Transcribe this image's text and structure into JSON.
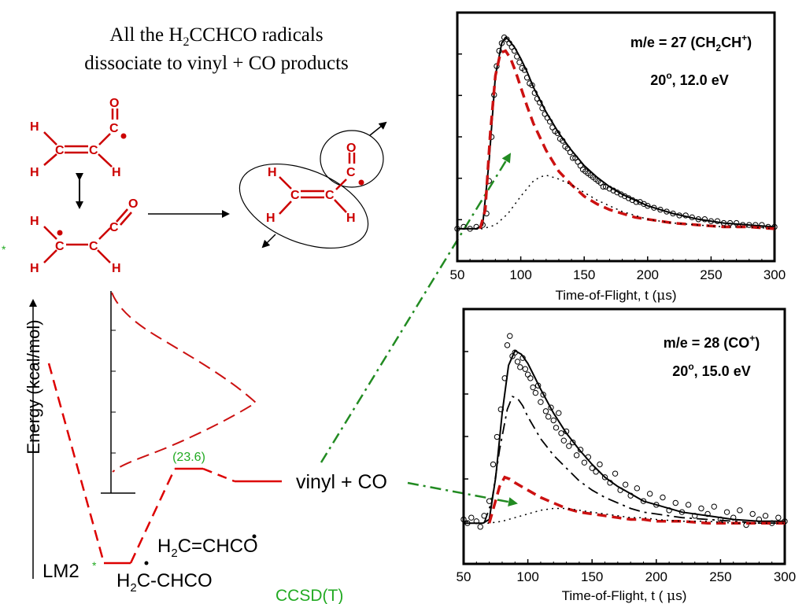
{
  "title": {
    "line1_pre": "All the H",
    "line1_sub": "2",
    "line1_post": "CCHCO radicals",
    "line2": "dissociate to vinyl + CO products"
  },
  "structures": {
    "atoms": {
      "H": "H",
      "C": "C",
      "O": "O"
    }
  },
  "energy_diagram": {
    "ylabel": "Energy (kcal/mol)",
    "barrier_label": "(23.6)",
    "product_label": "vinyl + CO",
    "minimum_label": "LM2",
    "star": "*",
    "species1": {
      "pre": "H",
      "sub": "2",
      "post": "C=CHCO"
    },
    "species2": {
      "pre": "H",
      "sub": "2",
      "post": "C-CHCO"
    },
    "method": "CCSD(T)",
    "colors": {
      "pathway": "#dd0000",
      "method": "#22aa22"
    }
  },
  "chart_data": [
    {
      "type": "line",
      "label": {
        "pre": "m/e = 27 (CH",
        "sub": "2",
        "mid": "CH",
        "sup": "+",
        "post": ")"
      },
      "condition": {
        "pre": "20",
        "sup": "o",
        "post": ", 12.0 eV"
      },
      "xlabel": {
        "pre": "Time-of-Flight, t (",
        "mu": "μ",
        "post": "s)"
      },
      "xlim": [
        50,
        300
      ],
      "ylim": [
        0,
        1
      ],
      "x_ticks": [
        50,
        100,
        150,
        200,
        250,
        300
      ],
      "colors": {
        "data": "#000000",
        "fit": "#000000",
        "red": "#cc1111",
        "dotted": "#000000"
      },
      "series": [
        {
          "style": "circles",
          "x": [
            50,
            55,
            60,
            65,
            70,
            73,
            75,
            77,
            79,
            81,
            83,
            85,
            87,
            89,
            91,
            93,
            95,
            97,
            99,
            101,
            103,
            105,
            107,
            109,
            111,
            113,
            115,
            117,
            119,
            121,
            123,
            125,
            127,
            129,
            131,
            133,
            135,
            137,
            139,
            141,
            143,
            145,
            147,
            149,
            151,
            153,
            155,
            157,
            159,
            161,
            163,
            165,
            167,
            170,
            173,
            176,
            179,
            182,
            185,
            188,
            191,
            194,
            197,
            200,
            205,
            210,
            215,
            220,
            225,
            230,
            235,
            240,
            245,
            250,
            255,
            260,
            265,
            270,
            275,
            280,
            285,
            290,
            295,
            300
          ],
          "y": [
            0.0,
            0.01,
            0.0,
            0.01,
            0.02,
            0.08,
            0.25,
            0.48,
            0.7,
            0.85,
            0.93,
            0.97,
            1.0,
            0.99,
            0.97,
            0.95,
            0.93,
            0.9,
            0.87,
            0.84,
            0.83,
            0.79,
            0.76,
            0.75,
            0.71,
            0.68,
            0.66,
            0.63,
            0.6,
            0.58,
            0.56,
            0.53,
            0.51,
            0.5,
            0.47,
            0.46,
            0.43,
            0.42,
            0.4,
            0.37,
            0.37,
            0.35,
            0.33,
            0.31,
            0.3,
            0.29,
            0.28,
            0.27,
            0.26,
            0.25,
            0.24,
            0.22,
            0.22,
            0.21,
            0.2,
            0.19,
            0.18,
            0.17,
            0.16,
            0.15,
            0.14,
            0.14,
            0.13,
            0.12,
            0.11,
            0.1,
            0.09,
            0.08,
            0.07,
            0.07,
            0.06,
            0.05,
            0.05,
            0.04,
            0.04,
            0.03,
            0.03,
            0.03,
            0.02,
            0.02,
            0.02,
            0.02,
            0.01,
            0.01
          ]
        },
        {
          "style": "solid",
          "x": [
            50,
            65,
            70,
            75,
            80,
            85,
            88,
            90,
            95,
            100,
            105,
            110,
            120,
            130,
            140,
            150,
            160,
            170,
            180,
            190,
            200,
            220,
            240,
            260,
            280,
            300
          ],
          "y": [
            0.0,
            0.0,
            0.02,
            0.35,
            0.8,
            0.97,
            1.0,
            0.99,
            0.95,
            0.89,
            0.82,
            0.74,
            0.61,
            0.5,
            0.41,
            0.33,
            0.27,
            0.22,
            0.18,
            0.15,
            0.12,
            0.08,
            0.05,
            0.03,
            0.02,
            0.01
          ]
        },
        {
          "style": "dashed",
          "x": [
            68,
            72,
            76,
            80,
            84,
            88,
            92,
            96,
            100,
            105,
            110,
            120,
            130,
            140,
            150,
            160,
            170,
            180,
            190,
            200,
            220,
            240,
            260,
            280,
            300
          ],
          "y": [
            0.0,
            0.1,
            0.5,
            0.8,
            0.92,
            0.93,
            0.89,
            0.82,
            0.74,
            0.64,
            0.55,
            0.41,
            0.3,
            0.23,
            0.17,
            0.13,
            0.1,
            0.08,
            0.06,
            0.05,
            0.03,
            0.02,
            0.01,
            0.01,
            0.0
          ]
        },
        {
          "style": "dotted",
          "x": [
            60,
            70,
            80,
            90,
            100,
            110,
            115,
            120,
            125,
            130,
            140,
            150,
            160,
            170,
            180,
            190,
            200,
            220,
            240,
            260,
            280,
            300
          ],
          "y": [
            0.0,
            0.0,
            0.02,
            0.08,
            0.17,
            0.25,
            0.27,
            0.28,
            0.27,
            0.26,
            0.23,
            0.19,
            0.15,
            0.12,
            0.09,
            0.07,
            0.05,
            0.03,
            0.02,
            0.01,
            0.01,
            0.0
          ]
        }
      ]
    },
    {
      "type": "line",
      "label": {
        "pre": "m/e = 28 (CO",
        "sup": "+",
        "post": ")"
      },
      "condition": {
        "pre": "20",
        "sup": "o",
        "post": ", 15.0 eV"
      },
      "xlabel": {
        "pre": "Time-of-Flight, t ( ",
        "mu": "μ",
        "post": "s)"
      },
      "xlim": [
        50,
        300
      ],
      "ylim": [
        0,
        1
      ],
      "x_ticks": [
        50,
        100,
        150,
        200,
        250,
        300
      ],
      "colors": {
        "data": "#000000",
        "fit": "#000000",
        "red": "#cc1111",
        "dotted": "#000000"
      },
      "series": [
        {
          "style": "circles",
          "x": [
            50,
            53,
            56,
            60,
            63,
            66,
            70,
            73,
            76,
            79,
            82,
            84,
            86,
            88,
            90,
            92,
            94,
            96,
            98,
            100,
            102,
            104,
            106,
            108,
            110,
            112,
            114,
            116,
            118,
            120,
            122,
            124,
            126,
            128,
            130,
            132,
            135,
            138,
            141,
            144,
            147,
            150,
            153,
            156,
            160,
            164,
            168,
            172,
            176,
            180,
            185,
            190,
            195,
            200,
            205,
            210,
            215,
            220,
            225,
            230,
            235,
            240,
            245,
            250,
            255,
            260,
            265,
            270,
            275,
            280,
            285,
            290,
            295,
            300
          ],
          "y": [
            0.02,
            0.0,
            0.03,
            0.01,
            -0.02,
            0.04,
            0.12,
            0.32,
            0.47,
            0.62,
            0.79,
            0.97,
            1.02,
            0.91,
            0.93,
            0.88,
            0.85,
            0.9,
            0.84,
            0.81,
            0.79,
            0.74,
            0.71,
            0.75,
            0.66,
            0.7,
            0.61,
            0.58,
            0.63,
            0.56,
            0.52,
            0.6,
            0.49,
            0.45,
            0.5,
            0.42,
            0.44,
            0.37,
            0.4,
            0.33,
            0.36,
            0.3,
            0.28,
            0.32,
            0.25,
            0.22,
            0.27,
            0.18,
            0.21,
            0.15,
            0.19,
            0.12,
            0.16,
            0.1,
            0.14,
            0.07,
            0.11,
            0.06,
            0.1,
            0.04,
            0.08,
            0.05,
            0.09,
            0.02,
            0.06,
            0.03,
            0.07,
            -0.01,
            0.05,
            0.02,
            0.04,
            0.0,
            0.03,
            0.01
          ]
        },
        {
          "style": "solid",
          "x": [
            50,
            65,
            70,
            75,
            80,
            85,
            90,
            95,
            100,
            105,
            110,
            120,
            130,
            140,
            150,
            160,
            170,
            180,
            190,
            200,
            220,
            240,
            260,
            280,
            300
          ],
          "y": [
            0.0,
            0.0,
            0.02,
            0.25,
            0.6,
            0.86,
            0.94,
            0.92,
            0.87,
            0.8,
            0.73,
            0.6,
            0.49,
            0.4,
            0.32,
            0.25,
            0.2,
            0.16,
            0.12,
            0.1,
            0.06,
            0.04,
            0.02,
            0.01,
            0.01
          ]
        },
        {
          "style": "dashdot",
          "x": [
            66,
            72,
            78,
            84,
            88,
            92,
            96,
            100,
            105,
            110,
            120,
            130,
            140,
            150,
            160,
            170,
            180,
            190,
            200,
            220,
            240,
            260,
            280,
            300
          ],
          "y": [
            0.0,
            0.12,
            0.4,
            0.62,
            0.69,
            0.68,
            0.64,
            0.58,
            0.52,
            0.46,
            0.37,
            0.3,
            0.23,
            0.18,
            0.14,
            0.11,
            0.08,
            0.06,
            0.05,
            0.03,
            0.02,
            0.01,
            0.0,
            0.0
          ]
        },
        {
          "style": "dashed",
          "x": [
            70,
            74,
            78,
            82,
            86,
            90,
            95,
            100,
            110,
            120,
            130,
            140,
            150,
            160,
            170,
            180,
            190,
            200,
            220,
            240,
            260,
            280,
            300
          ],
          "y": [
            0.0,
            0.1,
            0.2,
            0.25,
            0.24,
            0.22,
            0.2,
            0.18,
            0.14,
            0.11,
            0.08,
            0.06,
            0.05,
            0.04,
            0.03,
            0.02,
            0.02,
            0.01,
            0.01,
            0.0,
            0.0,
            0.0,
            0.0
          ]
        },
        {
          "style": "dotted",
          "x": [
            60,
            70,
            80,
            90,
            100,
            110,
            120,
            130,
            140,
            150,
            160,
            170,
            180,
            190,
            200,
            220,
            240,
            260,
            280,
            300
          ],
          "y": [
            0.0,
            0.0,
            0.01,
            0.03,
            0.05,
            0.07,
            0.08,
            0.08,
            0.07,
            0.06,
            0.05,
            0.04,
            0.03,
            0.03,
            0.02,
            0.01,
            0.01,
            0.0,
            0.0,
            0.0
          ]
        }
      ]
    }
  ]
}
